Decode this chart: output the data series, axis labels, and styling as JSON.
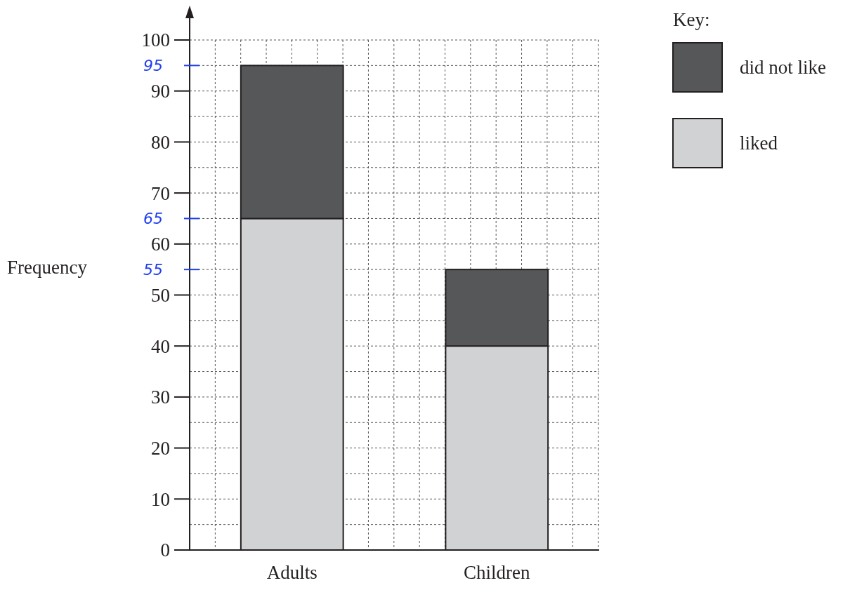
{
  "chart_data": {
    "type": "bar",
    "stacked": true,
    "categories": [
      "Adults",
      "Children"
    ],
    "series": [
      {
        "name": "liked",
        "color": "#d1d2d4",
        "values": [
          65,
          40
        ]
      },
      {
        "name": "did not like",
        "color": "#555759",
        "values": [
          30,
          15
        ]
      }
    ],
    "ylabel": "Frequency",
    "legend_title": "Key:",
    "legend": "top right",
    "grid": true,
    "ylim": [
      0,
      100
    ],
    "yticks": [
      0,
      10,
      20,
      30,
      40,
      50,
      60,
      70,
      80,
      90,
      100
    ],
    "ref_lines": [
      {
        "axis": "y",
        "value": 95,
        "label": "95"
      },
      {
        "axis": "y",
        "value": 65,
        "label": "65"
      },
      {
        "axis": "y",
        "value": 55,
        "label": "55"
      }
    ]
  }
}
